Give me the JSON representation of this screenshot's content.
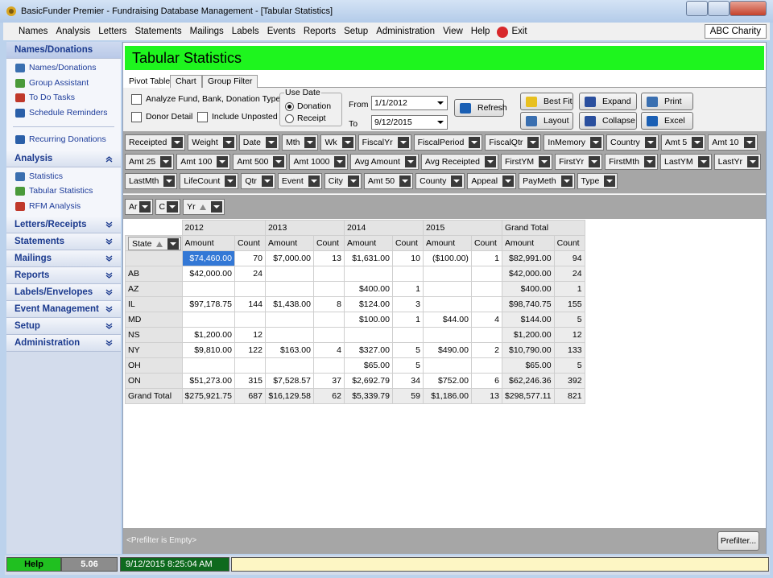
{
  "window": {
    "title": "BasicFunder Premier - Fundraising Database Management - [Tabular Statistics]"
  },
  "menu": {
    "items": [
      "Names",
      "Analysis",
      "Letters",
      "Statements",
      "Mailings",
      "Labels",
      "Events",
      "Reports",
      "Setup",
      "Administration",
      "View",
      "Help"
    ],
    "exit": "Exit",
    "org": "ABC Charity"
  },
  "sidebar": {
    "sections": [
      {
        "title": "Names/Donations",
        "items": [
          "Names/Donations",
          "Group Assistant",
          "To Do Tasks",
          "Schedule Reminders"
        ],
        "extra": "Recurring Donations"
      },
      {
        "title": "Analysis",
        "items": [
          "Statistics",
          "Tabular Statistics",
          "RFM Analysis"
        ]
      },
      {
        "title": "Letters/Receipts"
      },
      {
        "title": "Statements"
      },
      {
        "title": "Mailings"
      },
      {
        "title": "Reports"
      },
      {
        "title": "Labels/Envelopes"
      },
      {
        "title": "Event Management"
      },
      {
        "title": "Setup"
      },
      {
        "title": "Administration"
      }
    ]
  },
  "header": {
    "title": "Tabular Statistics"
  },
  "tabs": [
    "Pivot Table",
    "Chart",
    "Group Filter"
  ],
  "options": {
    "checkboxes": [
      "Analyze Fund, Bank, Donation Type",
      "Donor Detail",
      "Include Unposted"
    ],
    "use_date": {
      "label": "Use Date",
      "choices": [
        "Donation",
        "Receipt"
      ]
    },
    "from": {
      "label": "From",
      "value": "1/1/2012"
    },
    "to": {
      "label": "To",
      "value": "9/12/2015"
    },
    "buttons": [
      "Refresh",
      "Best Fit",
      "Layout",
      "Expand",
      "Collapse",
      "Print",
      "Excel"
    ]
  },
  "filter_fields": [
    "Receipted",
    "Weight",
    "Date",
    "Mth",
    "Wk",
    "FiscalYr",
    "FiscalPeriod",
    "FiscalQtr",
    "InMemory",
    "Country",
    "Amt 5",
    "Amt 10",
    "Amt 25",
    "Amt 100",
    "Amt 500",
    "Amt 1000",
    "Avg Amount",
    "Avg Receipted",
    "FirstYM",
    "FirstYr",
    "FirstMth",
    "LastYM",
    "LastYr",
    "LastMth",
    "LifeCount",
    "Qtr",
    "Event",
    "City",
    "Amt 50",
    "County",
    "Appeal",
    "PayMeth",
    "Type"
  ],
  "row_fields": [
    "Ar",
    "C",
    "Yr"
  ],
  "pivot": {
    "row_field": "State",
    "columns": [
      "2012",
      "2013",
      "2014",
      "2015",
      "Grand Total"
    ],
    "measures": [
      "Amount",
      "Count"
    ],
    "rows": [
      {
        "label": null,
        "cells": [
          "$74,460.00",
          70,
          "$7,000.00",
          13,
          "$1,631.00",
          10,
          "($100.00)",
          1,
          "$82,991.00",
          94
        ]
      },
      {
        "label": "AB",
        "cells": [
          "$42,000.00",
          24,
          null,
          null,
          null,
          null,
          null,
          null,
          "$42,000.00",
          24
        ]
      },
      {
        "label": "AZ",
        "cells": [
          null,
          null,
          null,
          null,
          "$400.00",
          1,
          null,
          null,
          "$400.00",
          1
        ]
      },
      {
        "label": "IL",
        "cells": [
          "$97,178.75",
          144,
          "$1,438.00",
          8,
          "$124.00",
          3,
          null,
          null,
          "$98,740.75",
          155
        ]
      },
      {
        "label": "MD",
        "cells": [
          null,
          null,
          null,
          null,
          "$100.00",
          1,
          "$44.00",
          4,
          "$144.00",
          5
        ]
      },
      {
        "label": "NS",
        "cells": [
          "$1,200.00",
          12,
          null,
          null,
          null,
          null,
          null,
          null,
          "$1,200.00",
          12
        ]
      },
      {
        "label": "NY",
        "cells": [
          "$9,810.00",
          122,
          "$163.00",
          4,
          "$327.00",
          5,
          "$490.00",
          2,
          "$10,790.00",
          133
        ]
      },
      {
        "label": "OH",
        "cells": [
          null,
          null,
          null,
          null,
          "$65.00",
          5,
          null,
          null,
          "$65.00",
          5
        ]
      },
      {
        "label": "ON",
        "cells": [
          "$51,273.00",
          315,
          "$7,528.57",
          37,
          "$2,692.79",
          34,
          "$752.00",
          6,
          "$62,246.36",
          392
        ]
      },
      {
        "label": "Grand Total",
        "cells": [
          "$275,921.75",
          687,
          "$16,129.58",
          62,
          "$5,339.79",
          59,
          "$1,186.00",
          13,
          "$298,577.11",
          821
        ]
      }
    ]
  },
  "footer": {
    "prefilter_status": "<Prefilter is Empty>",
    "prefilter_button": "Prefilter..."
  },
  "status": {
    "help": "Help",
    "version": "5.06",
    "datetime": "9/12/2015 8:25:04 AM"
  }
}
